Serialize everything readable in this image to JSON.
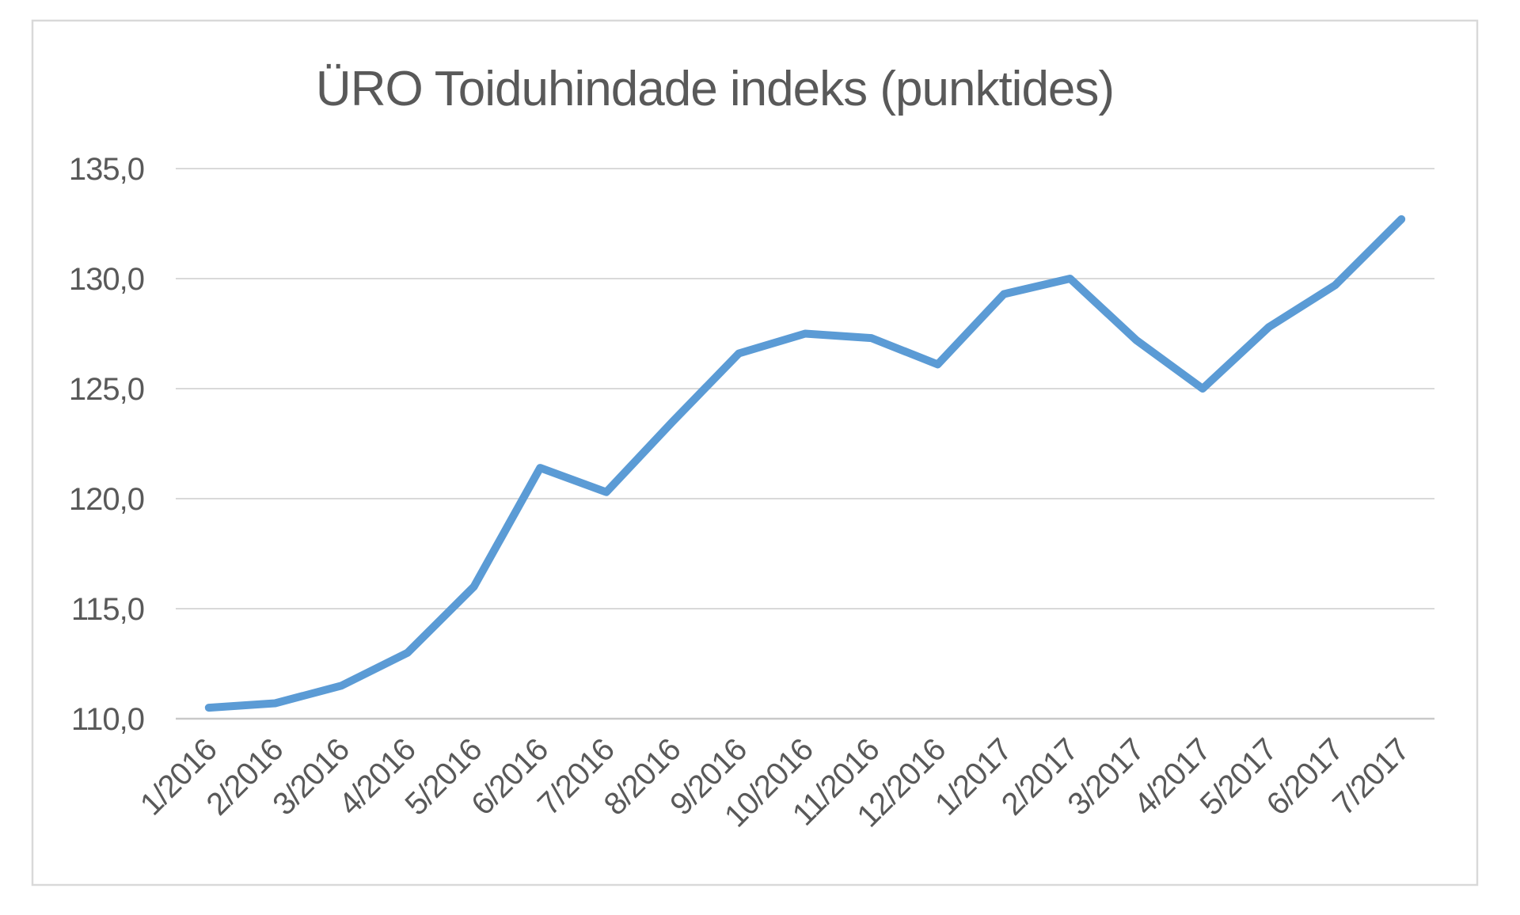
{
  "chart_data": {
    "type": "line",
    "title": "ÜRO Toiduhindade indeks (punktides)",
    "categories": [
      "1/2016",
      "2/2016",
      "3/2016",
      "4/2016",
      "5/2016",
      "6/2016",
      "7/2016",
      "8/2016",
      "9/2016",
      "10/2016",
      "11/2016",
      "12/2016",
      "1/2017",
      "2/2017",
      "3/2017",
      "4/2017",
      "5/2017",
      "6/2017",
      "7/2017"
    ],
    "values": [
      110.5,
      110.7,
      111.5,
      113.0,
      116.0,
      121.4,
      120.3,
      123.5,
      126.6,
      127.5,
      127.3,
      126.1,
      129.3,
      130.0,
      127.2,
      125.0,
      127.8,
      129.7,
      132.7
    ],
    "ylim": [
      110,
      135
    ],
    "ytick_step": 5,
    "yticks": [
      {
        "value": 110,
        "label": "110,0"
      },
      {
        "value": 115,
        "label": "115,0"
      },
      {
        "value": 120,
        "label": "120,0"
      },
      {
        "value": 125,
        "label": "125,0"
      },
      {
        "value": 130,
        "label": "130,0"
      },
      {
        "value": 135,
        "label": "135,0"
      }
    ],
    "decimal_separator": ",",
    "grid": "horizontal",
    "legend": "none",
    "x_label_rotation_deg": 45,
    "colors": {
      "line": "#5B9BD5",
      "grid": "#D9D9D9",
      "axis_line": "#C9C9C9",
      "frame": "#D9D9D9",
      "text": "#595959",
      "background": "#FFFFFF"
    }
  }
}
